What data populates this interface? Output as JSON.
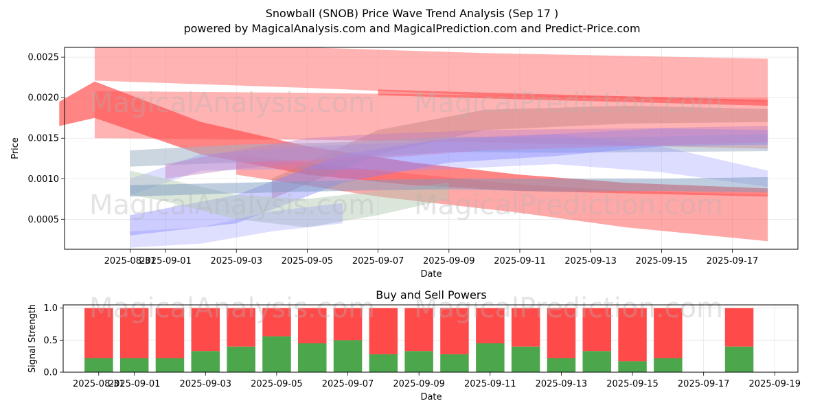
{
  "page": {
    "title_line1": "Snowball (SNOB) Price Wave Trend Analysis (Sep 17 )",
    "title_line2": "powered by MagicalAnalysis.com and MagicalPrediction.com and Predict-Price.com",
    "watermarks": [
      "MagicalAnalysis.com",
      "MagicalPrediction.com"
    ]
  },
  "chart_data": [
    {
      "type": "area",
      "title": "",
      "xlabel": "Date",
      "ylabel": "Price",
      "x_type": "date",
      "xlim": [
        "2025-08-30",
        "2025-09-19"
      ],
      "ylim": [
        0.00013,
        0.00262
      ],
      "x_ticks": [
        "2025-08-31",
        "2025-09-01",
        "2025-09-03",
        "2025-09-05",
        "2025-09-07",
        "2025-09-09",
        "2025-09-11",
        "2025-09-13",
        "2025-09-15",
        "2025-09-17"
      ],
      "x_tick_labels": [
        "2025-08-31",
        "2025-09-01",
        "2025-09-03",
        "2025-09-05",
        "2025-09-07",
        "2025-09-09",
        "2025-09-11",
        "2025-09-13",
        "2025-09-15",
        "2025-09-17"
      ],
      "y_ticks": [
        0.0005,
        0.001,
        0.0015,
        0.002,
        0.0025
      ],
      "y_tick_labels": [
        "0.0005",
        "0.0010",
        "0.0015",
        "0.0020",
        "0.0025"
      ],
      "grid": true,
      "bands": [
        {
          "color": "#ff8080",
          "opacity": 0.6,
          "x": [
            "2025-08-30",
            "2025-09-05",
            "2025-09-10",
            "2025-09-18"
          ],
          "lower": [
            0.00221,
            0.00212,
            0.00203,
            0.00195
          ],
          "upper": [
            0.00262,
            0.00262,
            0.00255,
            0.00248
          ]
        },
        {
          "color": "#ff8080",
          "opacity": 0.6,
          "x": [
            "2025-08-30",
            "2025-09-05",
            "2025-09-10",
            "2025-09-18"
          ],
          "lower": [
            0.0015,
            0.00148,
            0.00145,
            0.00137
          ],
          "upper": [
            0.00208,
            0.00206,
            0.00203,
            0.002
          ]
        },
        {
          "color": "#ff4040",
          "opacity": 0.55,
          "x": [
            "2025-09-07",
            "2025-09-11",
            "2025-09-18"
          ],
          "lower": [
            0.00203,
            0.00198,
            0.0019
          ],
          "upper": [
            0.0021,
            0.00205,
            0.00197
          ]
        },
        {
          "color": "#ff5050",
          "opacity": 0.7,
          "x": [
            "2025-08-29",
            "2025-08-30",
            "2025-09-02",
            "2025-09-05",
            "2025-09-08",
            "2025-09-11",
            "2025-09-14",
            "2025-09-18"
          ],
          "lower": [
            0.00165,
            0.00175,
            0.0013,
            0.00105,
            0.00092,
            0.00085,
            0.00082,
            0.00078
          ],
          "upper": [
            0.00195,
            0.0022,
            0.0017,
            0.0014,
            0.0012,
            0.00105,
            0.00095,
            0.00088
          ]
        },
        {
          "color": "#ff6060",
          "opacity": 0.55,
          "x": [
            "2025-09-03",
            "2025-09-07",
            "2025-09-11",
            "2025-09-14",
            "2025-09-18"
          ],
          "lower": [
            0.00105,
            0.00078,
            0.00058,
            0.0004,
            0.00023
          ],
          "upper": [
            0.0013,
            0.0011,
            0.00093,
            0.00085,
            0.0008
          ]
        },
        {
          "color": "#c48080",
          "opacity": 0.45,
          "x": [
            "2025-09-04",
            "2025-09-07",
            "2025-09-10",
            "2025-09-14",
            "2025-09-18"
          ],
          "lower": [
            0.00075,
            0.0013,
            0.0016,
            0.00168,
            0.0017
          ],
          "upper": [
            0.001,
            0.0016,
            0.00185,
            0.0019,
            0.00186
          ]
        },
        {
          "color": "#a0b4c8",
          "opacity": 0.55,
          "x": [
            "2025-08-31",
            "2025-09-03",
            "2025-09-06",
            "2025-09-09",
            "2025-09-12",
            "2025-09-15",
            "2025-09-18"
          ],
          "lower": [
            0.00115,
            0.0012,
            0.00125,
            0.00133,
            0.00132,
            0.00133,
            0.00134
          ],
          "upper": [
            0.00135,
            0.00142,
            0.00145,
            0.00152,
            0.0015,
            0.00152,
            0.00155
          ]
        },
        {
          "color": "#8080ff",
          "opacity": 0.4,
          "x": [
            "2025-08-31",
            "2025-09-03",
            "2025-09-06",
            "2025-09-09",
            "2025-09-12",
            "2025-09-15",
            "2025-09-18"
          ],
          "lower": [
            0.0003,
            0.00045,
            0.00095,
            0.0012,
            0.00128,
            0.0014,
            0.00142
          ],
          "upper": [
            0.00055,
            0.0008,
            0.0013,
            0.0015,
            0.00155,
            0.00162,
            0.0016
          ]
        },
        {
          "color": "#9090ff",
          "opacity": 0.3,
          "x": [
            "2025-08-31",
            "2025-09-02",
            "2025-09-05",
            "2025-09-08",
            "2025-09-12",
            "2025-09-15",
            "2025-09-18"
          ],
          "lower": [
            0.0008,
            0.0011,
            0.00112,
            0.0011,
            0.00118,
            0.00108,
            0.0009
          ],
          "upper": [
            0.001,
            0.0013,
            0.0014,
            0.00145,
            0.00155,
            0.0014,
            0.0011
          ]
        },
        {
          "color": "#b0c8b0",
          "opacity": 0.45,
          "x": [
            "2025-08-31",
            "2025-09-01",
            "2025-09-03",
            "2025-09-05",
            "2025-09-07",
            "2025-09-09"
          ],
          "lower": [
            0.0008,
            0.00072,
            0.0005,
            0.0004,
            0.00055,
            0.00075
          ],
          "upper": [
            0.0011,
            0.001,
            0.0008,
            0.00075,
            0.00085,
            0.00095
          ]
        },
        {
          "color": "#7d9cc0",
          "opacity": 0.5,
          "x": [
            "2025-08-31",
            "2025-09-03",
            "2025-09-06",
            "2025-09-09",
            "2025-09-12",
            "2025-09-15",
            "2025-09-18"
          ],
          "lower": [
            0.00078,
            0.00082,
            0.00085,
            0.00087,
            0.00084,
            0.00085,
            0.00083
          ],
          "upper": [
            0.00092,
            0.00095,
            0.00098,
            0.001,
            0.001,
            0.001,
            0.00102
          ]
        },
        {
          "color": "#c080c0",
          "opacity": 0.45,
          "x": [
            "2025-09-01",
            "2025-09-03",
            "2025-09-05",
            "2025-09-07",
            "2025-09-10",
            "2025-09-14",
            "2025-09-18"
          ],
          "lower": [
            0.001,
            0.00112,
            0.0012,
            0.00125,
            0.00135,
            0.0014,
            0.00145
          ],
          "upper": [
            0.00118,
            0.00135,
            0.0015,
            0.00155,
            0.0016,
            0.00162,
            0.00165
          ]
        },
        {
          "color": "#8888ff",
          "opacity": 0.28,
          "x": [
            "2025-08-31",
            "2025-09-02",
            "2025-09-04",
            "2025-09-06"
          ],
          "lower": [
            0.00015,
            0.0002,
            0.00035,
            0.00045
          ],
          "upper": [
            0.00035,
            0.0004,
            0.0006,
            0.0007
          ]
        }
      ]
    },
    {
      "type": "bar",
      "stacked": true,
      "title": "Buy and Sell Powers",
      "xlabel": "Date",
      "ylabel": "Signal Strength",
      "x_type": "date",
      "xlim": [
        "2025-08-30",
        "2025-09-19"
      ],
      "ylim": [
        0,
        1.05
      ],
      "x_ticks": [
        "2025-08-31",
        "2025-09-01",
        "2025-09-03",
        "2025-09-05",
        "2025-09-07",
        "2025-09-09",
        "2025-09-11",
        "2025-09-13",
        "2025-09-15",
        "2025-09-17",
        "2025-09-19"
      ],
      "x_tick_labels": [
        "2025-08-31",
        "2025-09-01",
        "2025-09-03",
        "2025-09-05",
        "2025-09-07",
        "2025-09-09",
        "2025-09-11",
        "2025-09-13",
        "2025-09-15",
        "2025-09-17",
        "2025-09-19"
      ],
      "y_ticks": [
        0.0,
        0.5,
        1.0
      ],
      "y_tick_labels": [
        "0.0",
        "0.5",
        "1.0"
      ],
      "grid": true,
      "categories": [
        "2025-08-31",
        "2025-09-01",
        "2025-09-02",
        "2025-09-03",
        "2025-09-04",
        "2025-09-05",
        "2025-09-06",
        "2025-09-07",
        "2025-09-08",
        "2025-09-09",
        "2025-09-10",
        "2025-09-11",
        "2025-09-12",
        "2025-09-13",
        "2025-09-14",
        "2025-09-15",
        "2025-09-16",
        "2025-09-18"
      ],
      "series": [
        {
          "color": "#4ca64c",
          "values": [
            0.22,
            0.22,
            0.22,
            0.33,
            0.4,
            0.56,
            0.45,
            0.5,
            0.28,
            0.33,
            0.28,
            0.45,
            0.4,
            0.22,
            0.33,
            0.17,
            0.22,
            0.4
          ]
        },
        {
          "color": "#ff4a4a",
          "values": [
            0.78,
            0.78,
            0.78,
            0.67,
            0.6,
            0.44,
            0.55,
            0.5,
            0.72,
            0.67,
            0.72,
            0.55,
            0.6,
            0.78,
            0.67,
            0.83,
            0.78,
            0.6
          ]
        }
      ]
    }
  ]
}
